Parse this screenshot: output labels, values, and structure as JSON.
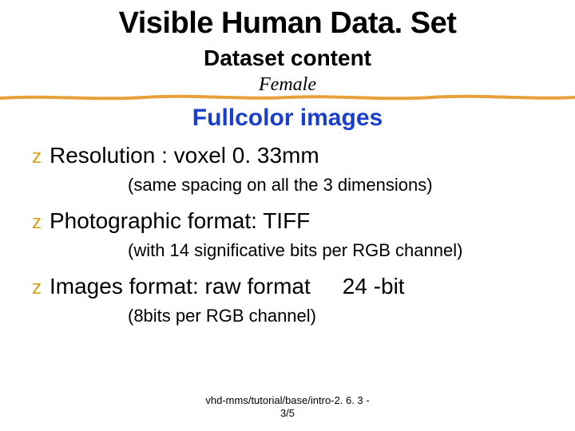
{
  "title": "Visible Human Data. Set",
  "subtitle": "Dataset content",
  "gender_label": "Female",
  "section_heading": "Fullcolor images",
  "section_heading_color": "#1a3fcf",
  "bullet_marker_color": "#d4a017",
  "underline_color": "#e8a13a",
  "bullets": [
    {
      "main": "Resolution : voxel 0. 33mm",
      "note": "(same spacing on all the 3 dimensions)"
    },
    {
      "main": "Photographic format: TIFF",
      "note": "(with 14 significative bits per RGB channel)"
    },
    {
      "main": "Images format:  raw format",
      "extra": "24 -bit",
      "note": "(8bits per RGB channel)"
    }
  ],
  "footer_line1": "vhd-mms/tutorial/base/intro-2. 6. 3 -",
  "footer_line2": "3/5"
}
